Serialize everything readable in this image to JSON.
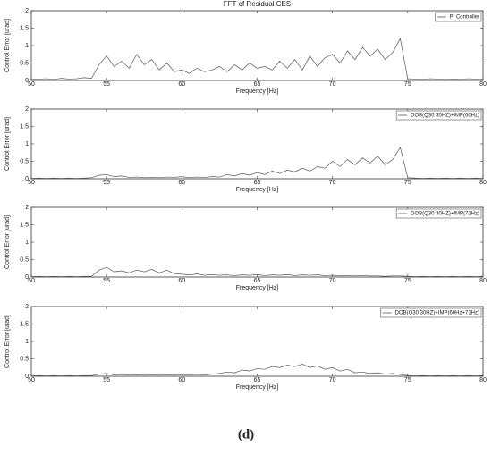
{
  "chart_data": [
    {
      "type": "line",
      "title": "FFT of Residual CES",
      "xlabel": "Frequency [Hz]",
      "ylabel": "Control Error [urad]",
      "x": [
        50,
        50.5,
        51,
        51.5,
        52,
        52.5,
        53,
        53.5,
        54,
        54.5,
        55,
        55.5,
        56,
        56.5,
        57,
        57.5,
        58,
        58.5,
        59,
        59.5,
        60,
        60.5,
        61,
        61.5,
        62,
        62.5,
        63,
        63.5,
        64,
        64.5,
        65,
        65.5,
        66,
        66.5,
        67,
        67.5,
        68,
        68.5,
        69,
        69.5,
        70,
        70.5,
        71,
        71.5,
        72,
        72.5,
        73,
        73.5,
        74,
        74.5,
        75,
        75.5,
        76,
        76.5,
        77,
        77.5,
        78,
        78.5,
        79,
        79.5,
        80
      ],
      "series": [
        {
          "name": "PI Controller",
          "color": "#555555",
          "values": [
            0.03,
            0.04,
            0.05,
            0.03,
            0.06,
            0.04,
            0.05,
            0.08,
            0.06,
            0.45,
            0.7,
            0.4,
            0.55,
            0.35,
            0.75,
            0.45,
            0.6,
            0.3,
            0.5,
            0.25,
            0.3,
            0.2,
            0.35,
            0.25,
            0.3,
            0.4,
            0.25,
            0.45,
            0.3,
            0.5,
            0.35,
            0.4,
            0.3,
            0.55,
            0.35,
            0.6,
            0.3,
            0.7,
            0.4,
            0.65,
            0.75,
            0.5,
            0.85,
            0.6,
            0.95,
            0.7,
            0.9,
            0.6,
            0.8,
            1.2,
            0.05,
            0.04,
            0.03,
            0.05,
            0.04,
            0.03,
            0.04,
            0.03,
            0.05,
            0.04,
            0.03
          ]
        }
      ],
      "xlim": [
        50,
        80
      ],
      "ylim": [
        0,
        2
      ],
      "xticks": [
        50,
        55,
        60,
        65,
        70,
        75,
        80
      ],
      "yticks": [
        0,
        0.5,
        1,
        1.5,
        2
      ]
    },
    {
      "type": "line",
      "xlabel": "Frequency [Hz]",
      "ylabel": "Control Error [urad]",
      "x": [
        50,
        50.5,
        51,
        51.5,
        52,
        52.5,
        53,
        53.5,
        54,
        54.5,
        55,
        55.5,
        56,
        56.5,
        57,
        57.5,
        58,
        58.5,
        59,
        59.5,
        60,
        60.5,
        61,
        61.5,
        62,
        62.5,
        63,
        63.5,
        64,
        64.5,
        65,
        65.5,
        66,
        66.5,
        67,
        67.5,
        68,
        68.5,
        69,
        69.5,
        70,
        70.5,
        71,
        71.5,
        72,
        72.5,
        73,
        73.5,
        74,
        74.5,
        75,
        75.5,
        76,
        76.5,
        77,
        77.5,
        78,
        78.5,
        79,
        79.5,
        80
      ],
      "series": [
        {
          "name": "DOB(Q30 30HZ)+IMP(60Hz)",
          "color": "#555555",
          "values": [
            0.01,
            0.02,
            0.01,
            0.02,
            0.01,
            0.02,
            0.01,
            0.02,
            0.03,
            0.1,
            0.12,
            0.06,
            0.08,
            0.04,
            0.05,
            0.03,
            0.04,
            0.03,
            0.05,
            0.04,
            0.06,
            0.03,
            0.05,
            0.04,
            0.06,
            0.05,
            0.12,
            0.08,
            0.15,
            0.1,
            0.18,
            0.12,
            0.22,
            0.15,
            0.25,
            0.2,
            0.3,
            0.22,
            0.35,
            0.3,
            0.5,
            0.35,
            0.55,
            0.4,
            0.6,
            0.45,
            0.65,
            0.4,
            0.55,
            0.9,
            0.03,
            0.02,
            0.01,
            0.02,
            0.01,
            0.02,
            0.01,
            0.02,
            0.01,
            0.02,
            0.01
          ]
        }
      ],
      "xlim": [
        50,
        80
      ],
      "ylim": [
        0,
        2
      ],
      "xticks": [
        50,
        55,
        60,
        65,
        70,
        75,
        80
      ],
      "yticks": [
        0,
        0.5,
        1,
        1.5,
        2
      ]
    },
    {
      "type": "line",
      "xlabel": "Frequency [Hz]",
      "ylabel": "Control Error [urad]",
      "x": [
        50,
        50.5,
        51,
        51.5,
        52,
        52.5,
        53,
        53.5,
        54,
        54.5,
        55,
        55.5,
        56,
        56.5,
        57,
        57.5,
        58,
        58.5,
        59,
        59.5,
        60,
        60.5,
        61,
        61.5,
        62,
        62.5,
        63,
        63.5,
        64,
        64.5,
        65,
        65.5,
        66,
        66.5,
        67,
        67.5,
        68,
        68.5,
        69,
        69.5,
        70,
        70.5,
        71,
        71.5,
        72,
        72.5,
        73,
        73.5,
        74,
        74.5,
        75,
        75.5,
        76,
        76.5,
        77,
        77.5,
        78,
        78.5,
        79,
        79.5,
        80
      ],
      "series": [
        {
          "name": "DOB(Q30 30HZ)+IMP(71Hz)",
          "color": "#555555",
          "values": [
            0.01,
            0.02,
            0.01,
            0.02,
            0.01,
            0.02,
            0.01,
            0.02,
            0.02,
            0.2,
            0.28,
            0.15,
            0.18,
            0.12,
            0.2,
            0.15,
            0.22,
            0.12,
            0.2,
            0.1,
            0.08,
            0.06,
            0.09,
            0.05,
            0.07,
            0.05,
            0.06,
            0.04,
            0.06,
            0.05,
            0.07,
            0.04,
            0.06,
            0.05,
            0.07,
            0.04,
            0.06,
            0.05,
            0.06,
            0.04,
            0.05,
            0.03,
            0.04,
            0.03,
            0.04,
            0.03,
            0.03,
            0.02,
            0.03,
            0.03,
            0.02,
            0.01,
            0.02,
            0.01,
            0.02,
            0.01,
            0.02,
            0.01,
            0.02,
            0.01,
            0.02
          ]
        }
      ],
      "xlim": [
        50,
        80
      ],
      "ylim": [
        0,
        2
      ],
      "xticks": [
        50,
        55,
        60,
        65,
        70,
        75,
        80
      ],
      "yticks": [
        0,
        0.5,
        1,
        1.5,
        2
      ]
    },
    {
      "type": "line",
      "xlabel": "Frequency [Hz]",
      "ylabel": "Control Error [urad]",
      "x": [
        50,
        50.5,
        51,
        51.5,
        52,
        52.5,
        53,
        53.5,
        54,
        54.5,
        55,
        55.5,
        56,
        56.5,
        57,
        57.5,
        58,
        58.5,
        59,
        59.5,
        60,
        60.5,
        61,
        61.5,
        62,
        62.5,
        63,
        63.5,
        64,
        64.5,
        65,
        65.5,
        66,
        66.5,
        67,
        67.5,
        68,
        68.5,
        69,
        69.5,
        70,
        70.5,
        71,
        71.5,
        72,
        72.5,
        73,
        73.5,
        74,
        74.5,
        75,
        75.5,
        76,
        76.5,
        77,
        77.5,
        78,
        78.5,
        79,
        79.5,
        80
      ],
      "series": [
        {
          "name": "DOB(Q30 30HZ)+IMP(60Hz+71Hz)",
          "color": "#555555",
          "values": [
            0.01,
            0.02,
            0.01,
            0.02,
            0.01,
            0.02,
            0.01,
            0.02,
            0.02,
            0.06,
            0.08,
            0.04,
            0.05,
            0.03,
            0.04,
            0.03,
            0.04,
            0.03,
            0.04,
            0.03,
            0.04,
            0.03,
            0.05,
            0.04,
            0.06,
            0.08,
            0.12,
            0.1,
            0.18,
            0.15,
            0.22,
            0.2,
            0.28,
            0.25,
            0.32,
            0.28,
            0.35,
            0.25,
            0.3,
            0.2,
            0.25,
            0.15,
            0.2,
            0.1,
            0.12,
            0.08,
            0.1,
            0.06,
            0.08,
            0.05,
            0.02,
            0.01,
            0.02,
            0.01,
            0.02,
            0.01,
            0.02,
            0.01,
            0.02,
            0.01,
            0.02
          ]
        }
      ],
      "xlim": [
        50,
        80
      ],
      "ylim": [
        0,
        2
      ],
      "xticks": [
        50,
        55,
        60,
        65,
        70,
        75,
        80
      ],
      "yticks": [
        0,
        0.5,
        1,
        1.5,
        2
      ]
    }
  ],
  "caption": "(d)"
}
